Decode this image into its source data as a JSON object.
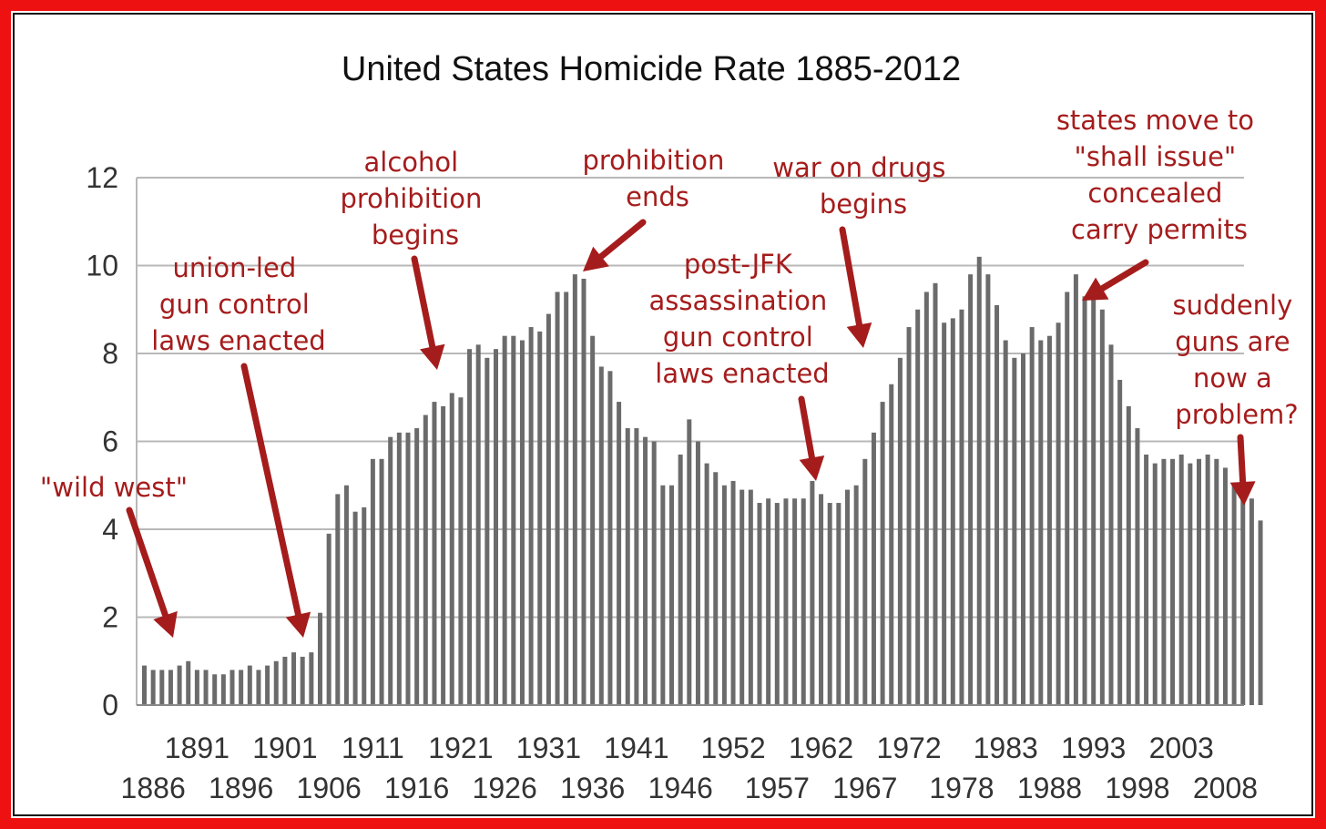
{
  "colors": {
    "frame": "#ee1111",
    "bar": "#6b6b6b",
    "grid": "#b8b8b8",
    "annotation": "#a51c1c"
  },
  "chart_data": {
    "type": "bar",
    "title": "United States Homicide Rate 1885-2012",
    "xlabel": "",
    "ylabel": "",
    "ylim": [
      0,
      12
    ],
    "y_ticks": [
      "0",
      "2",
      "4",
      "6",
      "8",
      "10",
      "12"
    ],
    "grid": true,
    "x_tick_labels_top": [
      "1891",
      "1901",
      "1911",
      "1921",
      "1931",
      "1941",
      "1952",
      "1962",
      "1972",
      "1983",
      "1993",
      "2003"
    ],
    "x_tick_labels_bottom": [
      "1886",
      "1896",
      "1906",
      "1916",
      "1926",
      "1936",
      "1946",
      "1957",
      "1967",
      "1978",
      "1988",
      "1998",
      "2008"
    ],
    "categories": [
      "1885",
      "1886",
      "1887",
      "1888",
      "1889",
      "1890",
      "1891",
      "1892",
      "1893",
      "1894",
      "1895",
      "1896",
      "1897",
      "1898",
      "1899",
      "1900",
      "1901",
      "1902",
      "1903",
      "1904",
      "1905",
      "1906",
      "1907",
      "1908",
      "1909",
      "1910",
      "1911",
      "1912",
      "1913",
      "1914",
      "1915",
      "1916",
      "1917",
      "1918",
      "1919",
      "1920",
      "1921",
      "1922",
      "1923",
      "1924",
      "1925",
      "1926",
      "1927",
      "1928",
      "1929",
      "1930",
      "1931",
      "1932",
      "1933",
      "1934",
      "1935",
      "1936",
      "1937",
      "1938",
      "1939",
      "1940",
      "1941",
      "1942",
      "1943",
      "1944",
      "1945",
      "1946",
      "1947",
      "1948",
      "1949",
      "1950",
      "1951",
      "1952",
      "1953",
      "1954",
      "1955",
      "1956",
      "1957",
      "1958",
      "1959",
      "1960",
      "1961",
      "1962",
      "1963",
      "1964",
      "1965",
      "1966",
      "1967",
      "1968",
      "1969",
      "1970",
      "1971",
      "1972",
      "1973",
      "1974",
      "1975",
      "1976",
      "1977",
      "1978",
      "1979",
      "1980",
      "1981",
      "1982",
      "1983",
      "1984",
      "1985",
      "1986",
      "1987",
      "1988",
      "1989",
      "1990",
      "1991",
      "1992",
      "1993",
      "1994",
      "1995",
      "1996",
      "1997",
      "1998",
      "1999",
      "2000",
      "2001",
      "2002",
      "2003",
      "2004",
      "2005",
      "2006",
      "2007",
      "2008",
      "2009",
      "2010",
      "2011",
      "2012"
    ],
    "values": [
      0.9,
      0.8,
      0.8,
      0.8,
      0.9,
      1.0,
      0.8,
      0.8,
      0.7,
      0.7,
      0.8,
      0.8,
      0.9,
      0.8,
      0.9,
      1.0,
      1.1,
      1.2,
      1.1,
      1.2,
      2.1,
      3.9,
      4.8,
      5.0,
      4.4,
      4.5,
      5.6,
      5.6,
      6.1,
      6.2,
      6.2,
      6.3,
      6.6,
      6.9,
      6.8,
      7.1,
      7.0,
      8.1,
      8.2,
      7.9,
      8.1,
      8.4,
      8.4,
      8.3,
      8.6,
      8.5,
      8.9,
      9.4,
      9.4,
      9.8,
      9.7,
      8.4,
      7.7,
      7.6,
      6.9,
      6.3,
      6.3,
      6.1,
      6.0,
      5.0,
      5.0,
      5.7,
      6.5,
      6.0,
      5.5,
      5.3,
      5.0,
      5.1,
      4.9,
      4.9,
      4.6,
      4.7,
      4.6,
      4.7,
      4.7,
      4.7,
      5.1,
      4.8,
      4.6,
      4.6,
      4.9,
      5.0,
      5.6,
      6.2,
      6.9,
      7.3,
      7.9,
      8.6,
      9.0,
      9.4,
      9.6,
      8.7,
      8.8,
      9.0,
      9.8,
      10.2,
      9.8,
      9.1,
      8.3,
      7.9,
      8.0,
      8.6,
      8.3,
      8.4,
      8.7,
      9.4,
      9.8,
      9.3,
      9.5,
      9.0,
      8.2,
      7.4,
      6.8,
      6.3,
      5.7,
      5.5,
      5.6,
      5.6,
      5.7,
      5.5,
      5.6,
      5.7,
      5.6,
      5.4,
      5.0,
      4.8,
      4.7,
      4.2
    ],
    "annotations": [
      {
        "text": "\"wild west\""
      },
      {
        "text": "union-led gun control laws enacted"
      },
      {
        "text": "alcohol prohibition begins"
      },
      {
        "text": "prohibition ends"
      },
      {
        "text": "post-JFK assassination gun control laws enacted"
      },
      {
        "text": "war on drugs begins"
      },
      {
        "text": "states move to \"shall issue\" concealed carry permits"
      },
      {
        "text": "suddenly guns are now a problem?"
      }
    ]
  }
}
